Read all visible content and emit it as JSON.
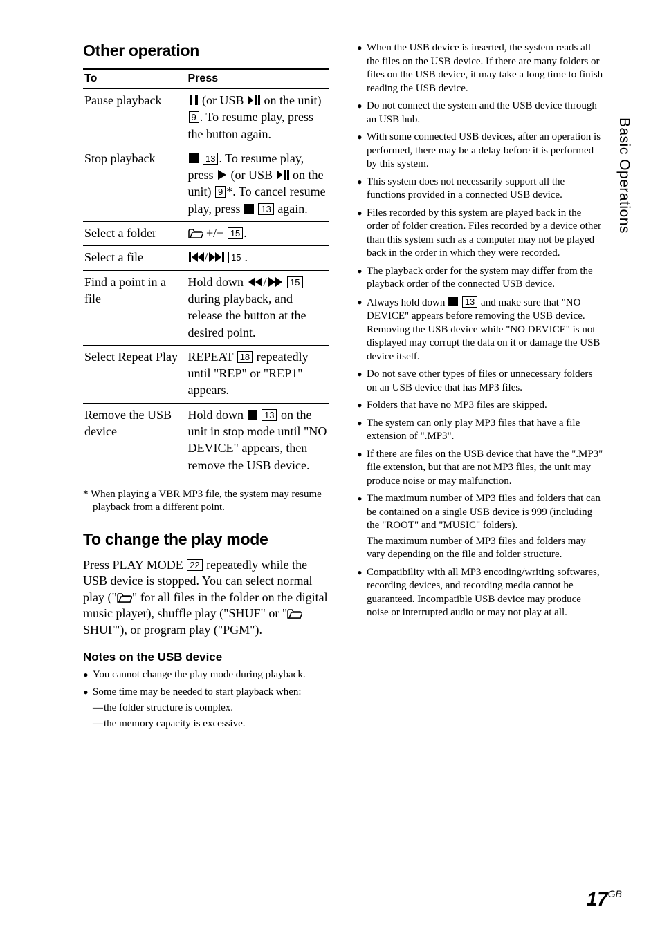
{
  "sideTab": "Basic Operations",
  "pageNumber": "17",
  "pageSuffix": "GB",
  "left": {
    "heading1": "Other operation",
    "table": {
      "headers": [
        "To",
        "Press"
      ],
      "rows": [
        {
          "to": "Pause playback",
          "press_parts": [
            "pause_sym",
            " (or USB ",
            "playpause_sym",
            " on the unit) ",
            "box9",
            ". To resume play, press the button again."
          ]
        },
        {
          "to": "Stop playback",
          "press_parts": [
            "stop_sym",
            " ",
            "box13",
            ". To resume play, press ",
            "play_sym",
            " (or USB ",
            "playpause_sym",
            " on the unit) ",
            "box9",
            "*. To cancel resume play, press ",
            "stop_sym",
            " ",
            "box13",
            " again."
          ]
        },
        {
          "to": "Select a folder",
          "press_parts": [
            "folder_sym",
            " +/− ",
            "box15",
            "."
          ]
        },
        {
          "to": "Select a file",
          "press_parts": [
            "prev_sym",
            "/",
            "next_sym",
            " ",
            "box15",
            "."
          ]
        },
        {
          "to": "Find a point in a file",
          "press_parts": [
            "Hold down ",
            "rew_sym",
            "/",
            "ff_sym",
            " ",
            "box15",
            "during playback, and release the button at the desired point."
          ]
        },
        {
          "to": "Select Repeat Play",
          "press_parts": [
            "REPEAT ",
            "box18",
            " repeatedly until \"REP\" or \"REP1\" appears."
          ]
        },
        {
          "to": "Remove the USB device",
          "press_parts": [
            "Hold down ",
            "stop_sym",
            " ",
            "box13",
            " on the unit in stop mode until \"NO DEVICE\" appears, then remove the USB device."
          ]
        }
      ]
    },
    "footnote": "*  When playing a VBR MP3 file, the system may resume playback from a different point.",
    "heading2": "To change the play mode",
    "playModeText_pre": "Press PLAY MODE ",
    "playModeText_box": "22",
    "playModeText_mid": " repeatedly while the USB device is stopped. You can select normal play (\"",
    "playModeText_mid2": "\" for all files in the folder on the digital music player), shuffle play (\"SHUF\" or \"",
    "playModeText_post": " SHUF\"), or program play (\"PGM\").",
    "subhead": "Notes on the USB device",
    "notesLeft": [
      "You cannot change the play mode during playback.",
      "Some time may be needed to start playback when:"
    ],
    "dashes": [
      "the folder structure is complex.",
      "the memory capacity is excessive."
    ]
  },
  "right": {
    "notes": [
      "When the USB device is inserted, the system reads all the files on the USB device. If there are many folders or files on the USB device, it may take a long time to finish reading the USB device.",
      "Do not connect the system and the USB device through an USB hub.",
      "With some connected USB devices, after an operation is performed, there may be a delay before it is performed by this system.",
      "This system does not necessarily support all the functions provided in a connected USB device.",
      "Files recorded by this system are played back in the order of folder creation. Files recorded by a device other than this system such as a computer may not be played back in the order in which they were recorded.",
      "The playback order for the system may differ from the playback order of the connected USB device.",
      "__HOLD_DOWN__",
      "Do not save other types of files or unnecessary folders on an USB device that has MP3 files.",
      "Folders that have no MP3 files are skipped.",
      "The system can only play MP3 files that have a file extension of \".MP3\".",
      "If there are files on the USB device that have the \".MP3\" file extension, but that are not MP3 files, the unit may produce noise or may malfunction.",
      "__MAX_NUMBER__",
      "Compatibility with all MP3 encoding/writing softwares, recording devices, and recording media cannot be guaranteed. Incompatible USB device may produce noise or interrupted audio or may not play at all."
    ],
    "holdDown_pre": "Always hold down ",
    "holdDown_post": " and make sure that \"NO DEVICE\" appears before removing the USB device. Removing the USB device while \"NO DEVICE\" is not displayed may corrupt the data on it or damage the USB device itself.",
    "maxNum_p1": "The maximum number of MP3 files and folders that can be contained on a single USB device is 999 (including the \"ROOT\" and \"MUSIC\" folders).",
    "maxNum_p2": "The maximum number of MP3 files and folders may vary depending on the file and folder structure."
  }
}
